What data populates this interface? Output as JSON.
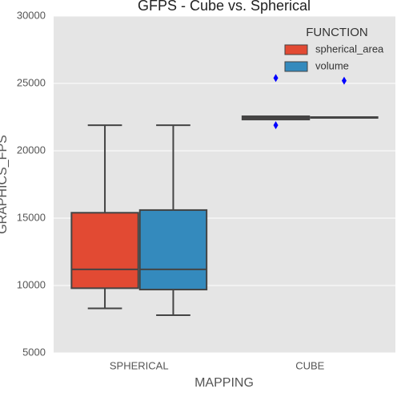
{
  "chart_data": {
    "type": "box",
    "title": "GFPS - Cube vs. Spherical",
    "x_label": "MAPPING",
    "y_label": "GRAPHICS_FPS",
    "categories": [
      "SPHERICAL",
      "CUBE"
    ],
    "legend_title": "FUNCTION",
    "legend": "upper right",
    "grid": true,
    "outlier_color": "#0000ff",
    "series": [
      {
        "name": "spherical_area",
        "color": "#e24a33",
        "values": [
          {
            "min": 8300,
            "q1": 9800,
            "median": 11200,
            "q3": 15400,
            "max": 21900,
            "outliers": []
          },
          {
            "min": 22320,
            "q1": 22320,
            "median": 22440,
            "q3": 22560,
            "max": 22560,
            "outliers": [
              25400,
              21900
            ]
          }
        ]
      },
      {
        "name": "volume",
        "color": "#348abd",
        "values": [
          {
            "min": 7800,
            "q1": 9700,
            "median": 11200,
            "q3": 15600,
            "max": 21900,
            "outliers": []
          },
          {
            "min": 22450,
            "q1": 22450,
            "median": 22480,
            "q3": 22500,
            "max": 22500,
            "outliers": [
              25200
            ]
          }
        ]
      }
    ],
    "ylim": [
      5000,
      30000
    ],
    "yticks": [
      5000,
      10000,
      15000,
      20000,
      25000,
      30000
    ]
  }
}
